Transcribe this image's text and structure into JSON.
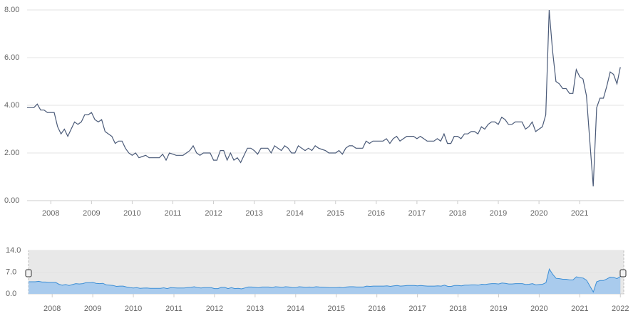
{
  "chart_data": {
    "type": "line",
    "x": [
      "2007-06",
      "2007-07",
      "2007-08",
      "2007-09",
      "2007-10",
      "2007-11",
      "2007-12",
      "2008-01",
      "2008-02",
      "2008-03",
      "2008-04",
      "2008-05",
      "2008-06",
      "2008-07",
      "2008-08",
      "2008-09",
      "2008-10",
      "2008-11",
      "2008-12",
      "2009-01",
      "2009-02",
      "2009-03",
      "2009-04",
      "2009-05",
      "2009-06",
      "2009-07",
      "2009-08",
      "2009-09",
      "2009-10",
      "2009-11",
      "2009-12",
      "2010-01",
      "2010-02",
      "2010-03",
      "2010-04",
      "2010-05",
      "2010-06",
      "2010-07",
      "2010-08",
      "2010-09",
      "2010-10",
      "2010-11",
      "2010-12",
      "2011-01",
      "2011-02",
      "2011-03",
      "2011-04",
      "2011-05",
      "2011-06",
      "2011-07",
      "2011-08",
      "2011-09",
      "2011-10",
      "2011-11",
      "2011-12",
      "2012-01",
      "2012-02",
      "2012-03",
      "2012-04",
      "2012-05",
      "2012-06",
      "2012-07",
      "2012-08",
      "2012-09",
      "2012-10",
      "2012-11",
      "2012-12",
      "2013-01",
      "2013-02",
      "2013-03",
      "2013-04",
      "2013-05",
      "2013-06",
      "2013-07",
      "2013-08",
      "2013-09",
      "2013-10",
      "2013-11",
      "2013-12",
      "2014-01",
      "2014-02",
      "2014-03",
      "2014-04",
      "2014-05",
      "2014-06",
      "2014-07",
      "2014-08",
      "2014-09",
      "2014-10",
      "2014-11",
      "2014-12",
      "2015-01",
      "2015-02",
      "2015-03",
      "2015-04",
      "2015-05",
      "2015-06",
      "2015-07",
      "2015-08",
      "2015-09",
      "2015-10",
      "2015-11",
      "2015-12",
      "2016-01",
      "2016-02",
      "2016-03",
      "2016-04",
      "2016-05",
      "2016-06",
      "2016-07",
      "2016-08",
      "2016-09",
      "2016-10",
      "2016-11",
      "2016-12",
      "2017-01",
      "2017-02",
      "2017-03",
      "2017-04",
      "2017-05",
      "2017-06",
      "2017-07",
      "2017-08",
      "2017-09",
      "2017-10",
      "2017-11",
      "2017-12",
      "2018-01",
      "2018-02",
      "2018-03",
      "2018-04",
      "2018-05",
      "2018-06",
      "2018-07",
      "2018-08",
      "2018-09",
      "2018-10",
      "2018-11",
      "2018-12",
      "2019-01",
      "2019-02",
      "2019-03",
      "2019-04",
      "2019-05",
      "2019-06",
      "2019-07",
      "2019-08",
      "2019-09",
      "2019-10",
      "2019-11",
      "2019-12",
      "2020-01",
      "2020-02",
      "2020-03",
      "2020-04",
      "2020-05",
      "2020-06",
      "2020-07",
      "2020-08",
      "2020-09",
      "2020-10",
      "2020-11",
      "2020-12",
      "2021-01",
      "2021-02",
      "2021-03",
      "2021-04",
      "2021-05",
      "2021-06",
      "2021-07",
      "2021-08",
      "2021-09",
      "2021-10",
      "2021-11",
      "2021-12",
      "2022-01"
    ],
    "series": [
      {
        "color": "#4a5a78",
        "values": [
          3.9,
          3.9,
          3.9,
          4.05,
          3.8,
          3.8,
          3.7,
          3.7,
          3.7,
          3.1,
          2.8,
          3.0,
          2.7,
          3.0,
          3.3,
          3.2,
          3.3,
          3.6,
          3.6,
          3.7,
          3.4,
          3.3,
          3.4,
          2.9,
          2.8,
          2.7,
          2.4,
          2.5,
          2.5,
          2.2,
          2.0,
          1.9,
          2.0,
          1.8,
          1.85,
          1.9,
          1.8,
          1.8,
          1.8,
          1.8,
          1.95,
          1.7,
          2.0,
          1.95,
          1.9,
          1.9,
          1.9,
          2.0,
          2.1,
          2.3,
          2.0,
          1.9,
          2.0,
          2.0,
          2.0,
          1.7,
          1.7,
          2.1,
          2.1,
          1.7,
          2.0,
          1.7,
          1.8,
          1.6,
          1.9,
          2.2,
          2.2,
          2.1,
          1.95,
          2.2,
          2.2,
          2.2,
          2.0,
          2.3,
          2.2,
          2.1,
          2.3,
          2.2,
          2.0,
          2.0,
          2.3,
          2.2,
          2.1,
          2.2,
          2.1,
          2.3,
          2.2,
          2.15,
          2.1,
          2.0,
          2.0,
          2.0,
          2.1,
          1.95,
          2.2,
          2.3,
          2.3,
          2.2,
          2.2,
          2.2,
          2.5,
          2.4,
          2.5,
          2.5,
          2.5,
          2.5,
          2.6,
          2.4,
          2.6,
          2.7,
          2.5,
          2.6,
          2.7,
          2.7,
          2.7,
          2.6,
          2.7,
          2.6,
          2.5,
          2.5,
          2.5,
          2.6,
          2.5,
          2.8,
          2.4,
          2.4,
          2.7,
          2.7,
          2.6,
          2.8,
          2.8,
          2.9,
          2.9,
          2.8,
          3.1,
          3.0,
          3.2,
          3.3,
          3.3,
          3.2,
          3.5,
          3.4,
          3.2,
          3.2,
          3.3,
          3.3,
          3.3,
          3.0,
          3.1,
          3.3,
          2.9,
          3.0,
          3.1,
          3.6,
          8.0,
          6.3,
          5.0,
          4.9,
          4.7,
          4.7,
          4.5,
          4.5,
          5.5,
          5.2,
          5.1,
          4.4,
          2.5,
          0.6,
          3.9,
          4.3,
          4.3,
          4.8,
          5.4,
          5.3,
          4.9,
          5.6
        ]
      }
    ],
    "xlim": [
      "2007-06",
      "2022-02"
    ],
    "xticks": [
      2008,
      2009,
      2010,
      2011,
      2012,
      2013,
      2014,
      2015,
      2016,
      2017,
      2018,
      2019,
      2020,
      2021
    ],
    "ylim": [
      0,
      8
    ],
    "yticks": [
      {
        "value": 0,
        "label": "0.00"
      },
      {
        "value": 2,
        "label": "2.00"
      },
      {
        "value": 4,
        "label": "4.00"
      },
      {
        "value": 6,
        "label": "6.00"
      },
      {
        "value": 8,
        "label": "8.00"
      }
    ],
    "grid": true,
    "navigator": {
      "color": "#3d8fd6",
      "fill": "#a9cbed",
      "ylim": [
        0,
        14
      ],
      "yticks": [
        {
          "value": 0,
          "label": "0.0"
        },
        {
          "value": 7,
          "label": "7.0"
        },
        {
          "value": 14,
          "label": "14.0"
        }
      ],
      "xticks": [
        2008,
        2009,
        2010,
        2011,
        2012,
        2013,
        2014,
        2015,
        2016,
        2017,
        2018,
        2019,
        2020,
        2021,
        2022
      ]
    }
  }
}
